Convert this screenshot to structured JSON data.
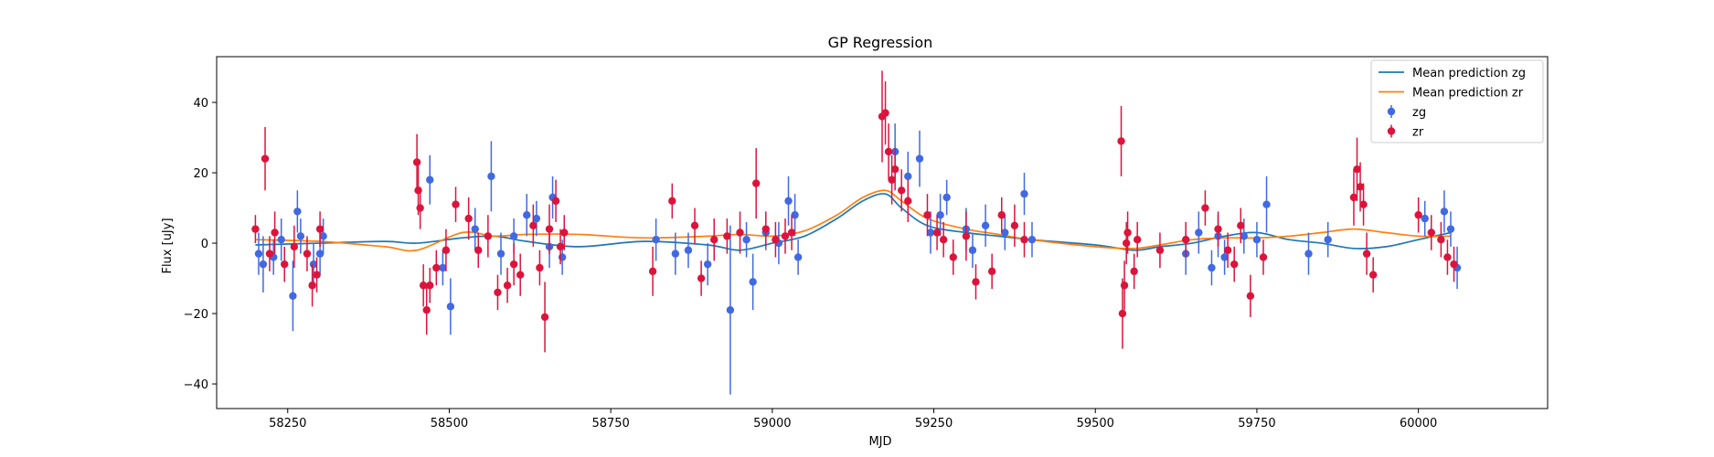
{
  "chart_data": {
    "type": "scatter",
    "title": "GP Regression",
    "xlabel": "MJD",
    "ylabel": "Flux [uJy]",
    "xlim": [
      58140,
      60200
    ],
    "ylim": [
      -47,
      53
    ],
    "xticks": [
      58250,
      58500,
      58750,
      59000,
      59250,
      59500,
      59750,
      60000
    ],
    "yticks": [
      -40,
      -20,
      0,
      20,
      40
    ],
    "grid": false,
    "legend_position": "top-right",
    "series": [
      {
        "name": "Mean prediction zg",
        "kind": "line",
        "color": "#1f77b4",
        "x": [
          58200,
          58300,
          58400,
          58450,
          58520,
          58570,
          58620,
          58700,
          58800,
          58900,
          58950,
          59000,
          59050,
          59100,
          59140,
          59175,
          59200,
          59240,
          59300,
          59350,
          59400,
          59500,
          59560,
          59600,
          59650,
          59700,
          59750,
          59800,
          59850,
          59900,
          59950,
          60000,
          60050
        ],
        "y": [
          -0.5,
          0,
          0.5,
          0,
          1.5,
          2,
          0.5,
          -1,
          0.5,
          -0.5,
          -2,
          0,
          2,
          7,
          12,
          14,
          10,
          5,
          3,
          2,
          1,
          -0.5,
          -2,
          -1,
          0,
          2,
          3,
          1,
          0,
          -1.5,
          -1,
          1,
          3
        ]
      },
      {
        "name": "Mean prediction zr",
        "kind": "line",
        "color": "#ff7f0e",
        "x": [
          58200,
          58300,
          58400,
          58450,
          58520,
          58570,
          58620,
          58700,
          58800,
          58900,
          58950,
          59000,
          59050,
          59100,
          59140,
          59175,
          59200,
          59240,
          59300,
          59350,
          59400,
          59500,
          59560,
          59600,
          59650,
          59700,
          59750,
          59800,
          59850,
          59900,
          59950,
          60000,
          60050
        ],
        "y": [
          1,
          0.5,
          -1,
          -2,
          3,
          2,
          2.5,
          2.5,
          1.5,
          2,
          2.5,
          2,
          3.5,
          8,
          13,
          15,
          12,
          7,
          4,
          2.5,
          1,
          -1,
          -1.5,
          -0.5,
          1,
          1.5,
          1.5,
          2,
          3,
          4,
          3,
          2,
          2
        ]
      },
      {
        "name": "zg",
        "kind": "errorbar",
        "color": "#4169e1",
        "x": [
          58205,
          58212,
          58228,
          58240,
          58258,
          58265,
          58270,
          58290,
          58300,
          58305,
          58470,
          58490,
          58502,
          58540,
          58565,
          58580,
          58600,
          58620,
          58635,
          58655,
          58660,
          58675,
          58820,
          58850,
          58870,
          58900,
          58935,
          58960,
          58970,
          58990,
          59010,
          59025,
          59035,
          59040,
          59190,
          59210,
          59228,
          59245,
          59260,
          59270,
          59300,
          59310,
          59330,
          59360,
          59390,
          59402,
          59640,
          59660,
          59680,
          59690,
          59700,
          59730,
          59750,
          59765,
          59830,
          59860,
          60010,
          60040,
          60050,
          60060
        ],
        "y": [
          -3,
          -6,
          -4,
          1,
          -15,
          9,
          2,
          -6,
          -3,
          2,
          18,
          -7,
          -18,
          4,
          19,
          -3,
          2,
          8,
          7,
          -1,
          13,
          -4,
          1,
          -3,
          -2,
          -6,
          -19,
          1,
          -11,
          3,
          0,
          12,
          8,
          -4,
          26,
          19,
          24,
          3,
          8,
          13,
          4,
          -2,
          5,
          3,
          14,
          1,
          -3,
          3,
          -7,
          2,
          -4,
          2,
          1,
          11,
          -3,
          1,
          7,
          9,
          4,
          -7
        ],
        "yerr": [
          6,
          8,
          5,
          6,
          10,
          6,
          5,
          6,
          6,
          5,
          7,
          5,
          8,
          6,
          10,
          6,
          5,
          6,
          5,
          6,
          6,
          5,
          6,
          6,
          5,
          6,
          24,
          5,
          8,
          5,
          6,
          7,
          6,
          5,
          8,
          7,
          8,
          6,
          6,
          5,
          6,
          5,
          6,
          5,
          6,
          5,
          6,
          6,
          5,
          6,
          5,
          5,
          5,
          8,
          6,
          5,
          5,
          6,
          5,
          6
        ]
      },
      {
        "name": "zr",
        "kind": "errorbar",
        "color": "#dc143c",
        "x": [
          58200,
          58215,
          58222,
          58230,
          58245,
          58260,
          58280,
          58288,
          58295,
          58300,
          58450,
          58452,
          58455,
          58460,
          58465,
          58470,
          58480,
          58495,
          58510,
          58530,
          58545,
          58560,
          58575,
          58590,
          58600,
          58610,
          58630,
          58640,
          58648,
          58655,
          58665,
          58672,
          58678,
          58815,
          58845,
          58880,
          58890,
          58910,
          58930,
          58950,
          58975,
          58990,
          59005,
          59020,
          59030,
          59170,
          59175,
          59180,
          59185,
          59190,
          59200,
          59210,
          59240,
          59255,
          59265,
          59280,
          59300,
          59315,
          59340,
          59355,
          59375,
          59390,
          59540,
          59542,
          59545,
          59548,
          59550,
          59560,
          59565,
          59600,
          59640,
          59670,
          59690,
          59705,
          59715,
          59725,
          59740,
          59760,
          59900,
          59905,
          59910,
          59915,
          59920,
          59930,
          60000,
          60020,
          60035,
          60045,
          60055
        ],
        "y": [
          4,
          24,
          -3,
          3,
          -6,
          -1,
          -3,
          -12,
          -9,
          4,
          23,
          15,
          10,
          -12,
          -19,
          -12,
          -7,
          -2,
          11,
          7,
          -2,
          2,
          -14,
          -12,
          -6,
          -9,
          5,
          -7,
          -21,
          4,
          12,
          -1,
          3,
          -8,
          12,
          5,
          -10,
          1,
          2,
          3,
          17,
          4,
          1,
          2,
          3,
          36,
          37,
          26,
          18,
          21,
          15,
          12,
          8,
          3,
          1,
          -4,
          2,
          -11,
          -8,
          8,
          5,
          1,
          29,
          -20,
          -12,
          0,
          3,
          -8,
          1,
          -2,
          1,
          10,
          4,
          -2,
          -6,
          5,
          -15,
          -4,
          13,
          21,
          16,
          11,
          -3,
          -9,
          8,
          3,
          1,
          -4,
          -6
        ],
        "yerr": [
          4,
          9,
          5,
          6,
          5,
          6,
          5,
          6,
          5,
          5,
          8,
          7,
          6,
          6,
          7,
          5,
          5,
          6,
          5,
          6,
          5,
          6,
          5,
          5,
          6,
          6,
          6,
          5,
          10,
          7,
          6,
          5,
          5,
          7,
          5,
          5,
          5,
          6,
          5,
          6,
          10,
          5,
          5,
          5,
          5,
          13,
          9,
          8,
          7,
          6,
          6,
          6,
          6,
          5,
          5,
          5,
          7,
          5,
          5,
          5,
          6,
          5,
          10,
          10,
          7,
          6,
          6,
          5,
          5,
          5,
          5,
          5,
          5,
          5,
          5,
          5,
          6,
          5,
          8,
          9,
          7,
          6,
          6,
          5,
          5,
          5,
          5,
          5,
          5
        ]
      }
    ]
  }
}
